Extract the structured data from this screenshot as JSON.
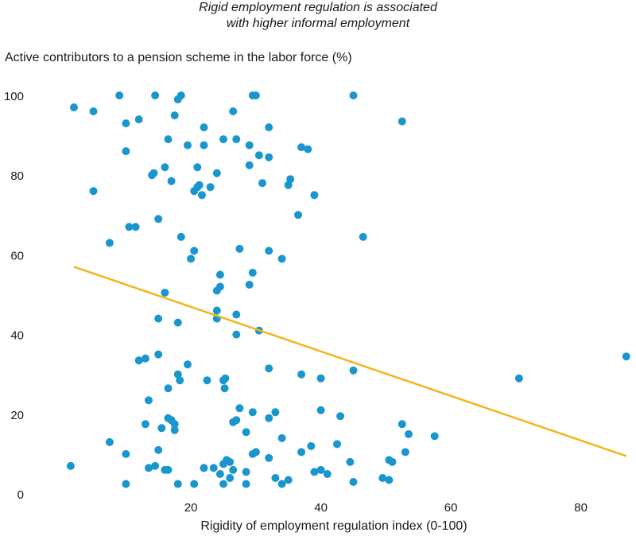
{
  "chart_data": {
    "type": "scatter",
    "title_lines": [
      "Rigid employment regulation is associated",
      "with higher informal employment"
    ],
    "ylabel": "Active contributors to a pension scheme in the labor force (%)",
    "xlabel": "Rigidity of employment regulation index (0-100)",
    "xlim": [
      -3.5,
      88
    ],
    "ylim": [
      0,
      100
    ],
    "xticks": [
      20,
      40,
      60,
      80
    ],
    "yticks": [
      0,
      20,
      40,
      60,
      80,
      100
    ],
    "grid": false,
    "colors": {
      "points": "#1a96cf",
      "trend": "#f2b51b"
    },
    "trendline": {
      "x": [
        2,
        87
      ],
      "y": [
        57,
        9.5
      ]
    },
    "points": [
      [
        2,
        97
      ],
      [
        5,
        96
      ],
      [
        5,
        76
      ],
      [
        9,
        100
      ],
      [
        14.5,
        100
      ],
      [
        18,
        99
      ],
      [
        18.5,
        100
      ],
      [
        10,
        93
      ],
      [
        12,
        94
      ],
      [
        10,
        86
      ],
      [
        17.5,
        95
      ],
      [
        22,
        92
      ],
      [
        16.5,
        89
      ],
      [
        19.5,
        87.5
      ],
      [
        22,
        87.5
      ],
      [
        25,
        89
      ],
      [
        27,
        89
      ],
      [
        29,
        87.5
      ],
      [
        26.5,
        96
      ],
      [
        29.5,
        100
      ],
      [
        30,
        100
      ],
      [
        32,
        92
      ],
      [
        30.5,
        85
      ],
      [
        32,
        84.5
      ],
      [
        37,
        87
      ],
      [
        38,
        86.5
      ],
      [
        45,
        100
      ],
      [
        52.5,
        93.5
      ],
      [
        14,
        80
      ],
      [
        14.3,
        80.5
      ],
      [
        16,
        82
      ],
      [
        17,
        78.5
      ],
      [
        21,
        82
      ],
      [
        24,
        80.5
      ],
      [
        21,
        77
      ],
      [
        21.3,
        77.5
      ],
      [
        20.5,
        76
      ],
      [
        21.7,
        75
      ],
      [
        23,
        77
      ],
      [
        29,
        82.5
      ],
      [
        31,
        78
      ],
      [
        35,
        77.5
      ],
      [
        35.3,
        79
      ],
      [
        39,
        75
      ],
      [
        36.5,
        70
      ],
      [
        15,
        69
      ],
      [
        10.5,
        67
      ],
      [
        11.5,
        67
      ],
      [
        7.5,
        63
      ],
      [
        18.5,
        64.5
      ],
      [
        20.5,
        61
      ],
      [
        20,
        59
      ],
      [
        27.5,
        61.5
      ],
      [
        32,
        61
      ],
      [
        34,
        59
      ],
      [
        46.5,
        64.5
      ],
      [
        24.5,
        55
      ],
      [
        29.5,
        55.5
      ],
      [
        24.5,
        52
      ],
      [
        24,
        51
      ],
      [
        29,
        52.5
      ],
      [
        16,
        50.5
      ],
      [
        24,
        46
      ],
      [
        24,
        44
      ],
      [
        27,
        45
      ],
      [
        15,
        44
      ],
      [
        18,
        43
      ],
      [
        27,
        40
      ],
      [
        30.5,
        41
      ],
      [
        12,
        33.5
      ],
      [
        13,
        34
      ],
      [
        15,
        35
      ],
      [
        19.5,
        32.5
      ],
      [
        18,
        30
      ],
      [
        18.3,
        28.5
      ],
      [
        16.5,
        26.5
      ],
      [
        22.5,
        28.5
      ],
      [
        25,
        28.5
      ],
      [
        25.3,
        29
      ],
      [
        25.2,
        26.5
      ],
      [
        32,
        31.5
      ],
      [
        37,
        30
      ],
      [
        40,
        29
      ],
      [
        45,
        31
      ],
      [
        70.5,
        29
      ],
      [
        87,
        34.5
      ],
      [
        13.5,
        23.5
      ],
      [
        16.5,
        19
      ],
      [
        17,
        18.5
      ],
      [
        27.5,
        21.5
      ],
      [
        29.5,
        20.5
      ],
      [
        33,
        20.5
      ],
      [
        40,
        21
      ],
      [
        43,
        19.5
      ],
      [
        13,
        17.5
      ],
      [
        17.5,
        17.5
      ],
      [
        15.5,
        16.5
      ],
      [
        17.5,
        16
      ],
      [
        26.5,
        18
      ],
      [
        27,
        18.5
      ],
      [
        28.5,
        15.5
      ],
      [
        32,
        19
      ],
      [
        52.5,
        17.5
      ],
      [
        53.5,
        15
      ],
      [
        57.5,
        14.5
      ],
      [
        7.5,
        13
      ],
      [
        15,
        11
      ],
      [
        10,
        10
      ],
      [
        14.5,
        7
      ],
      [
        13.5,
        6.5
      ],
      [
        16,
        6
      ],
      [
        16.5,
        6
      ],
      [
        22,
        6.5
      ],
      [
        23.5,
        6.5
      ],
      [
        24.5,
        5
      ],
      [
        25,
        7.5
      ],
      [
        25.5,
        8.5
      ],
      [
        26,
        8
      ],
      [
        26.5,
        6
      ],
      [
        25,
        2.5
      ],
      [
        28.5,
        5.5
      ],
      [
        28.5,
        2.5
      ],
      [
        29.5,
        10
      ],
      [
        30,
        10.5
      ],
      [
        32,
        9
      ],
      [
        34,
        14
      ],
      [
        37,
        10.5
      ],
      [
        38.5,
        12
      ],
      [
        39,
        5.5
      ],
      [
        40,
        6
      ],
      [
        41,
        5
      ],
      [
        42.5,
        12.5
      ],
      [
        44.5,
        8
      ],
      [
        45,
        3
      ],
      [
        49.5,
        4
      ],
      [
        50.5,
        3.5
      ],
      [
        50.5,
        8.5
      ],
      [
        51,
        8
      ],
      [
        53,
        10.5
      ],
      [
        33,
        4
      ],
      [
        34,
        2.5
      ],
      [
        35,
        3.5
      ],
      [
        26,
        4
      ],
      [
        10,
        2.5
      ],
      [
        18,
        2.5
      ],
      [
        20.5,
        2.5
      ],
      [
        1.5,
        7
      ]
    ]
  }
}
